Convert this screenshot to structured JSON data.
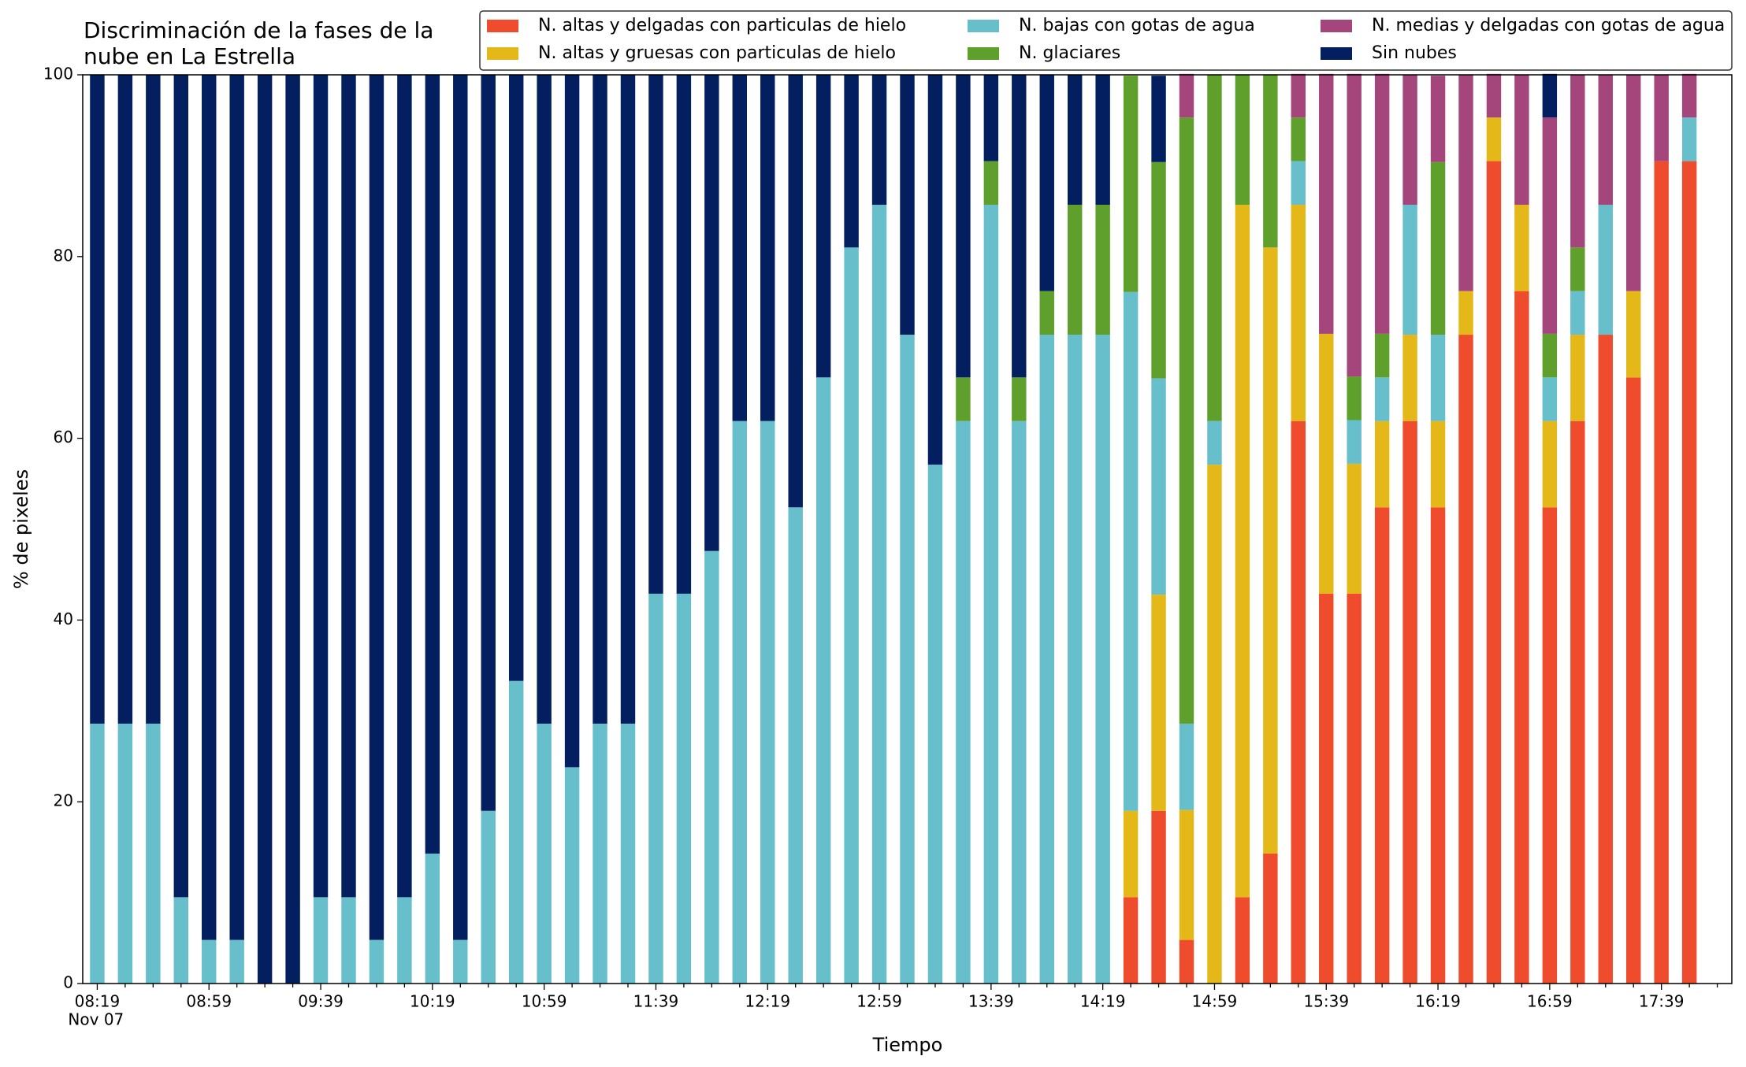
{
  "chart_data": {
    "type": "stacked_bar",
    "title": [
      "Discriminación de la fases de la",
      "nube en La Estrella"
    ],
    "x_label": "Tiempo",
    "y_label": "% de pixeles",
    "date_label": "Nov 07",
    "categories": [
      "08:19",
      null,
      null,
      null,
      "08:59",
      null,
      null,
      null,
      "09:39",
      null,
      null,
      null,
      "10:19",
      null,
      null,
      null,
      "10:59",
      null,
      null,
      null,
      "11:39",
      null,
      null,
      null,
      "12:19",
      null,
      null,
      null,
      "12:59",
      null,
      null,
      null,
      "13:39",
      null,
      null,
      null,
      "14:19",
      null,
      null,
      null,
      "14:59",
      null,
      null,
      null,
      "15:39",
      null,
      null,
      null,
      "16:19",
      null,
      null,
      null,
      "16:59",
      null,
      null,
      null,
      "17:39",
      null
    ],
    "ylim": [
      0,
      100
    ],
    "yticks": [
      0,
      20,
      40,
      60,
      80,
      100
    ],
    "series": [
      {
        "name": "N. altas y delgadas con particulas de hielo",
        "color": "#ee4c2c",
        "values": [
          0,
          0,
          0,
          0,
          0,
          0,
          0,
          0,
          0,
          0,
          0,
          0,
          0,
          0,
          0,
          0,
          0,
          0,
          0,
          0,
          0,
          0,
          0,
          0,
          0,
          0,
          0,
          0,
          0,
          0,
          0,
          0,
          0,
          0,
          0,
          0,
          0,
          9.5,
          19.0,
          4.8,
          0,
          9.5,
          14.3,
          61.9,
          42.9,
          42.9,
          52.4,
          61.9,
          52.4,
          71.4,
          90.5,
          76.2,
          52.4,
          61.9,
          71.4,
          66.7,
          90.5,
          90.5
        ]
      },
      {
        "name": "N. altas y gruesas con particulas de hielo",
        "color": "#e5b81a",
        "values": [
          0,
          0,
          0,
          0,
          0,
          0,
          0,
          0,
          0,
          0,
          0,
          0,
          0,
          0,
          0,
          0,
          0,
          0,
          0,
          0,
          0,
          0,
          0,
          0,
          0,
          0,
          0,
          0,
          0,
          0,
          0,
          0,
          0,
          0,
          0,
          0,
          0,
          9.5,
          23.8,
          14.3,
          57.1,
          76.2,
          66.7,
          23.8,
          28.6,
          14.3,
          9.5,
          9.5,
          9.5,
          4.8,
          4.8,
          9.5,
          9.5,
          9.5,
          0,
          9.5,
          0,
          0
        ]
      },
      {
        "name": "N. bajas con gotas de agua",
        "color": "#67bfcb",
        "values": [
          28.6,
          28.6,
          28.6,
          9.5,
          4.8,
          4.8,
          0,
          0,
          9.5,
          9.5,
          4.8,
          9.5,
          14.3,
          4.8,
          19.0,
          33.3,
          28.6,
          23.8,
          28.6,
          28.6,
          42.9,
          42.9,
          47.6,
          61.9,
          61.9,
          52.4,
          66.7,
          81.0,
          85.7,
          71.4,
          57.1,
          61.9,
          85.7,
          61.9,
          71.4,
          71.4,
          71.4,
          57.1,
          23.8,
          9.5,
          4.8,
          0,
          0,
          4.8,
          0,
          4.8,
          4.8,
          14.3,
          9.5,
          0,
          0,
          0,
          4.8,
          4.8,
          14.3,
          0,
          0,
          4.8
        ]
      },
      {
        "name": "N. glaciares",
        "color": "#5fa02c",
        "values": [
          0,
          0,
          0,
          0,
          0,
          0,
          0,
          0,
          0,
          0,
          0,
          0,
          0,
          0,
          0,
          0,
          0,
          0,
          0,
          0,
          0,
          0,
          0,
          0,
          0,
          0,
          0,
          0,
          0,
          0,
          0,
          4.8,
          4.8,
          4.8,
          4.8,
          14.3,
          14.3,
          23.8,
          23.8,
          66.7,
          38.1,
          14.3,
          19.0,
          4.8,
          0,
          4.8,
          4.8,
          0,
          19.0,
          0,
          0,
          0,
          4.8,
          4.8,
          0,
          0,
          0,
          0
        ]
      },
      {
        "name": "N. medias y delgadas con gotas de agua",
        "color": "#a4467c",
        "values": [
          0,
          0,
          0,
          0,
          0,
          0,
          0,
          0,
          0,
          0,
          0,
          0,
          0,
          0,
          0,
          0,
          0,
          0,
          0,
          0,
          0,
          0,
          0,
          0,
          0,
          0,
          0,
          0,
          0,
          0,
          0,
          0,
          0,
          0,
          0,
          0,
          0,
          0,
          0,
          4.8,
          0,
          0,
          0,
          4.8,
          28.6,
          33.3,
          28.6,
          14.3,
          9.5,
          23.8,
          4.8,
          14.3,
          23.8,
          19.0,
          14.3,
          23.8,
          9.5,
          4.8
        ]
      },
      {
        "name": "Sin nubes",
        "color": "#031f5f",
        "values": [
          71.4,
          71.4,
          71.4,
          90.5,
          95.2,
          95.2,
          100,
          100,
          90.5,
          90.5,
          95.2,
          90.5,
          85.7,
          95.2,
          81.0,
          66.7,
          71.4,
          76.2,
          71.4,
          71.4,
          57.1,
          57.1,
          52.4,
          38.1,
          38.1,
          47.6,
          33.3,
          19.0,
          14.3,
          28.6,
          42.9,
          33.3,
          9.5,
          33.3,
          23.8,
          14.3,
          14.3,
          0,
          9.5,
          0,
          0,
          0,
          0,
          0,
          0,
          0,
          0,
          0,
          0,
          0,
          0,
          0,
          4.8,
          0,
          0,
          0,
          0,
          0
        ]
      }
    ]
  }
}
